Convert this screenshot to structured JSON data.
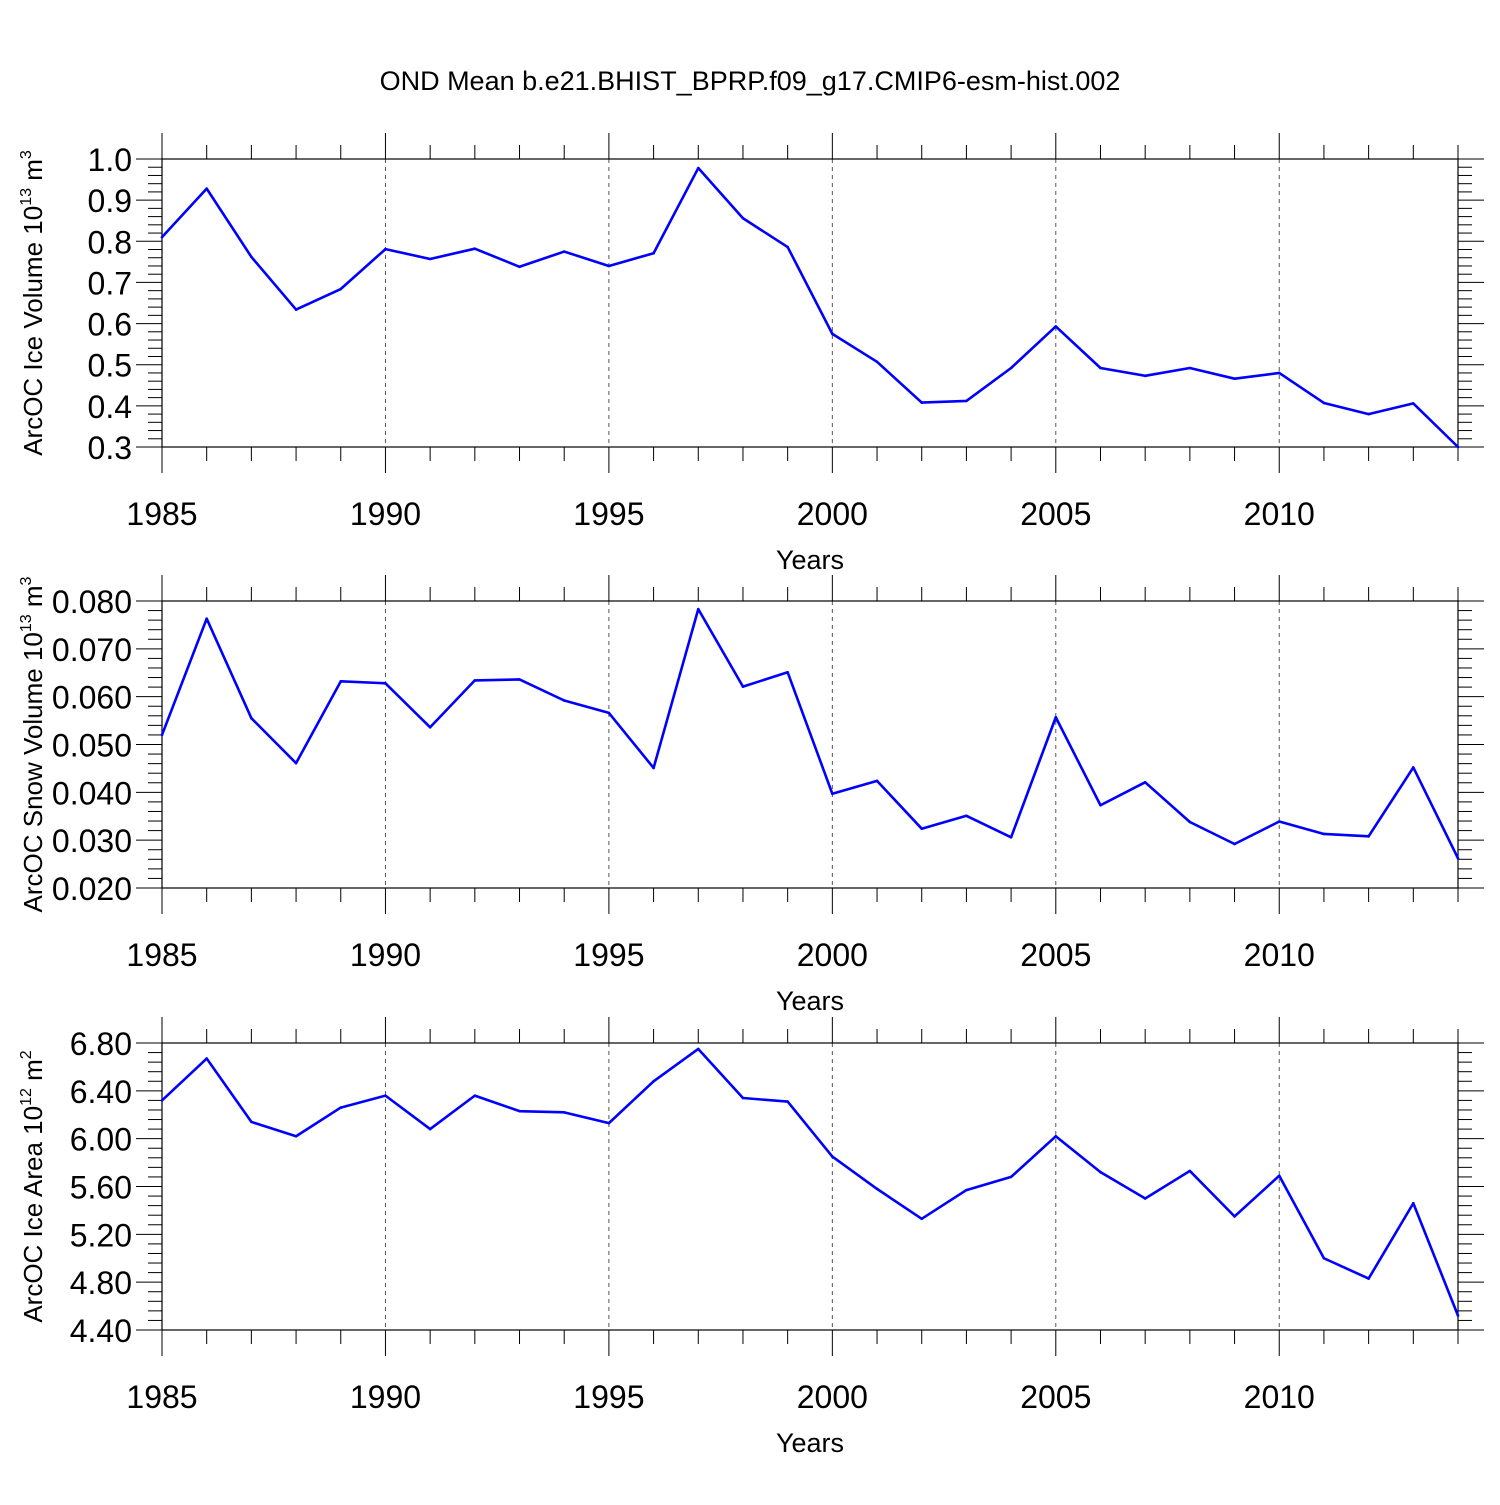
{
  "title": "OND Mean b.e21.BHIST_BPRP.f09_g17.CMIP6-esm-hist.002",
  "colors": {
    "line": "#0000ff",
    "axis": "#000000",
    "grid": "#555555"
  },
  "chart_data": [
    {
      "type": "line",
      "ylabel": "ArcOC Ice Volume 10",
      "ylabel_exp": "13",
      "ylabel_unit": " m",
      "ylabel_unit_exp": "3",
      "xlabel": "Years",
      "xlim": [
        1985,
        2014
      ],
      "ylim": [
        0.3,
        1.0
      ],
      "yticks": [
        0.3,
        0.4,
        0.5,
        0.6,
        0.7,
        0.8,
        0.9,
        1.0
      ],
      "ytick_labels": [
        "0.3",
        "0.4",
        "0.5",
        "0.6",
        "0.7",
        "0.8",
        "0.9",
        "1.0"
      ],
      "xticks": [
        1985,
        1990,
        1995,
        2000,
        2005,
        2010
      ],
      "xtick_labels": [
        "1985",
        "1990",
        "1995",
        "2000",
        "2005",
        "2010"
      ],
      "gridlines_x": [
        1990,
        1995,
        2000,
        2005,
        2010
      ],
      "x": [
        1985,
        1986,
        1987,
        1988,
        1989,
        1990,
        1991,
        1992,
        1993,
        1994,
        1995,
        1996,
        1997,
        1998,
        1999,
        2000,
        2001,
        2002,
        2003,
        2004,
        2005,
        2006,
        2007,
        2008,
        2009,
        2010,
        2011,
        2012,
        2013,
        2014
      ],
      "values": [
        0.81,
        0.928,
        0.762,
        0.634,
        0.684,
        0.781,
        0.757,
        0.782,
        0.738,
        0.775,
        0.74,
        0.771,
        0.978,
        0.856,
        0.786,
        0.575,
        0.507,
        0.408,
        0.412,
        0.492,
        0.593,
        0.492,
        0.473,
        0.492,
        0.466,
        0.48,
        0.407,
        0.38,
        0.406,
        0.3
      ]
    },
    {
      "type": "line",
      "ylabel": "ArcOC Snow Volume 10",
      "ylabel_exp": "13",
      "ylabel_unit": " m",
      "ylabel_unit_exp": "3",
      "xlabel": "Years",
      "xlim": [
        1985,
        2014
      ],
      "ylim": [
        0.02,
        0.08
      ],
      "yticks": [
        0.02,
        0.03,
        0.04,
        0.05,
        0.06,
        0.07,
        0.08
      ],
      "ytick_labels": [
        "0.020",
        "0.030",
        "0.040",
        "0.050",
        "0.060",
        "0.070",
        "0.080"
      ],
      "xticks": [
        1985,
        1990,
        1995,
        2000,
        2005,
        2010
      ],
      "xtick_labels": [
        "1985",
        "1990",
        "1995",
        "2000",
        "2005",
        "2010"
      ],
      "gridlines_x": [
        1990,
        1995,
        2000,
        2005,
        2010
      ],
      "x": [
        1985,
        1986,
        1987,
        1988,
        1989,
        1990,
        1991,
        1992,
        1993,
        1994,
        1995,
        1996,
        1997,
        1998,
        1999,
        2000,
        2001,
        2002,
        2003,
        2004,
        2005,
        2006,
        2007,
        2008,
        2009,
        2010,
        2011,
        2012,
        2013,
        2014
      ],
      "values": [
        0.052,
        0.0763,
        0.0555,
        0.0461,
        0.0632,
        0.0628,
        0.0536,
        0.0634,
        0.0636,
        0.0592,
        0.0566,
        0.0451,
        0.0783,
        0.0621,
        0.0651,
        0.0397,
        0.0424,
        0.0324,
        0.0351,
        0.0306,
        0.0557,
        0.0373,
        0.0421,
        0.0338,
        0.0292,
        0.0339,
        0.0313,
        0.0308,
        0.0452,
        0.0262
      ]
    },
    {
      "type": "line",
      "ylabel": "ArcOC Ice Area 10",
      "ylabel_exp": "12",
      "ylabel_unit": " m",
      "ylabel_unit_exp": "2",
      "xlabel": "Years",
      "xlim": [
        1985,
        2014
      ],
      "ylim": [
        4.4,
        6.8
      ],
      "yticks": [
        4.4,
        4.8,
        5.2,
        5.6,
        6.0,
        6.4,
        6.8
      ],
      "ytick_labels": [
        "4.40",
        "4.80",
        "5.20",
        "5.60",
        "6.00",
        "6.40",
        "6.80"
      ],
      "xticks": [
        1985,
        1990,
        1995,
        2000,
        2005,
        2010
      ],
      "xtick_labels": [
        "1985",
        "1990",
        "1995",
        "2000",
        "2005",
        "2010"
      ],
      "gridlines_x": [
        1990,
        1995,
        2000,
        2005,
        2010
      ],
      "x": [
        1985,
        1986,
        1987,
        1988,
        1989,
        1990,
        1991,
        1992,
        1993,
        1994,
        1995,
        1996,
        1997,
        1998,
        1999,
        2000,
        2001,
        2002,
        2003,
        2004,
        2005,
        2006,
        2007,
        2008,
        2009,
        2010,
        2011,
        2012,
        2013,
        2014
      ],
      "values": [
        6.32,
        6.67,
        6.14,
        6.02,
        6.26,
        6.36,
        6.08,
        6.36,
        6.23,
        6.22,
        6.13,
        6.48,
        6.75,
        6.34,
        6.31,
        5.85,
        5.58,
        5.33,
        5.57,
        5.68,
        6.02,
        5.72,
        5.5,
        5.73,
        5.35,
        5.69,
        5.0,
        4.83,
        5.46,
        4.52
      ]
    }
  ]
}
